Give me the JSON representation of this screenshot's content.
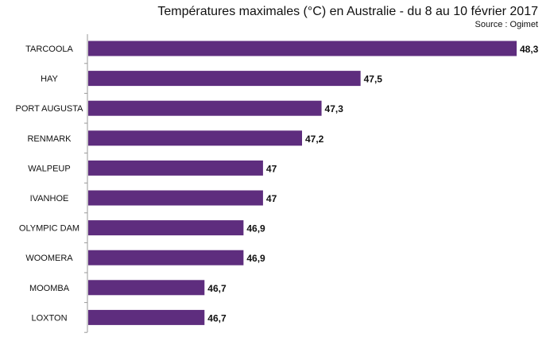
{
  "chart_data": {
    "type": "bar",
    "orientation": "horizontal",
    "title": "Températures maximales (°C) en Australie - du 8 au 10 février 2017",
    "subtitle": "Source : Ogimet",
    "categories": [
      "TARCOOLA",
      "HAY",
      "PORT  AUGUSTA",
      "RENMARK",
      "WALPEUP",
      "IVANHOE",
      "OLYMPIC  DAM",
      "WOOMERA",
      "MOOMBA",
      "LOXTON"
    ],
    "values": [
      48.3,
      47.5,
      47.3,
      47.2,
      47,
      47,
      46.9,
      46.9,
      46.7,
      46.7
    ],
    "value_labels": [
      "48,3",
      "47,5",
      "47,3",
      "47,2",
      "47",
      "47",
      "46,9",
      "46,9",
      "46,7",
      "46,7"
    ],
    "xlim": [
      46.1,
      48.3
    ],
    "bar_color": "#5e2d7e",
    "grid": false,
    "legend": "none"
  }
}
